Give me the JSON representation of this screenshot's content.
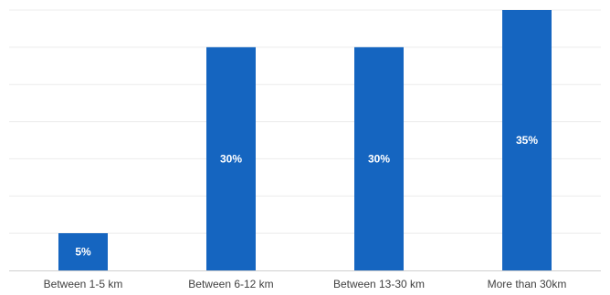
{
  "chart_data": {
    "type": "bar",
    "title": "",
    "xlabel": "",
    "ylabel": "",
    "categories": [
      "Between 1-5 km",
      "Between 6-12 km",
      "Between 13-30 km",
      "More than 30km"
    ],
    "values": [
      5,
      30,
      30,
      35
    ],
    "value_labels": [
      "5%",
      "30%",
      "30%",
      "35%"
    ],
    "ylim": [
      0,
      35
    ],
    "grid": true,
    "legend": "none",
    "bar_color": "#1565c0",
    "label_color": "#ffffff"
  }
}
